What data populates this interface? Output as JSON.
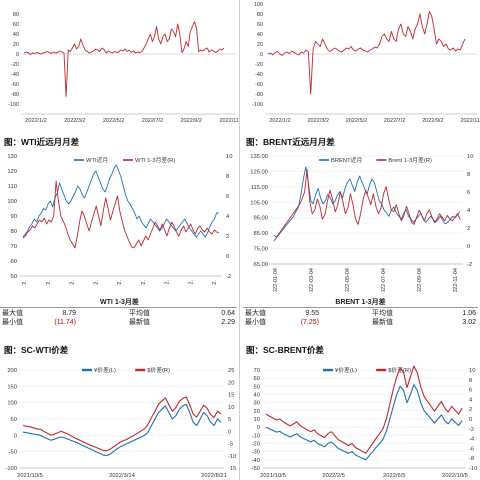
{
  "sections": {
    "wti_title": "图：WTI近远月月差",
    "brent_title": "图：BRENT近远月月差",
    "sc_wti_title": "图：SC-WTI价差",
    "sc_brent_title": "图：SC-BRENT价差"
  },
  "stats": {
    "wti": {
      "title": "WTI 1-3月差",
      "rows": [
        {
          "l1": "最大值",
          "v1": "8.79",
          "l2": "平均值",
          "v2": "0.64",
          "v1_color": "#222222"
        },
        {
          "l1": "最小值",
          "v1": "(11.74)",
          "l2": "最新值",
          "v2": "2.29",
          "v1_color": "#c00000"
        }
      ]
    },
    "brent": {
      "title": "BRENT 1-3月差",
      "rows": [
        {
          "l1": "最大值",
          "v1": "9.55",
          "l2": "平均值",
          "v2": "1.06",
          "v1_color": "#222222"
        },
        {
          "l1": "最小值",
          "v1": "(7.25)",
          "l2": "最新值",
          "v2": "3.02",
          "v1_color": "#c00000"
        }
      ]
    }
  },
  "colors": {
    "blue": "#1f6fb5",
    "red": "#c0272d"
  },
  "chart_data": [
    {
      "id": "top-left",
      "type": "line",
      "ylim": [
        -120,
        100
      ],
      "yticks": [
        -100,
        -80,
        -60,
        -40,
        -20,
        0,
        20,
        40,
        60,
        80
      ],
      "xticks": [
        "2022/1/2",
        "2022/3/2",
        "2022/5/2",
        "2022/7/2",
        "2022/9/2",
        "2022/11/"
      ],
      "series": [
        {
          "color": "red",
          "values": [
            2,
            4,
            3,
            -1,
            2,
            1,
            3,
            2,
            0,
            2,
            3,
            5,
            3,
            1,
            4,
            2,
            3,
            6,
            4,
            2,
            -85,
            8,
            5,
            12,
            20,
            10,
            15,
            30,
            18,
            8,
            5,
            2,
            4,
            6,
            10,
            8,
            5,
            12,
            9,
            2,
            6,
            4,
            2,
            5,
            3,
            4,
            8,
            6,
            10,
            5,
            8,
            3,
            6,
            2,
            4,
            3,
            5,
            12,
            20,
            30,
            40,
            25,
            35,
            55,
            30,
            20,
            35,
            40,
            25,
            30,
            50,
            45,
            35,
            60,
            40,
            3,
            10,
            25,
            15,
            45,
            55,
            65,
            50,
            5,
            8,
            6,
            10,
            12,
            4,
            8,
            6,
            3,
            5,
            10,
            8,
            12
          ]
        }
      ]
    },
    {
      "id": "top-right",
      "type": "line",
      "ylim": [
        -120,
        100
      ],
      "yticks": [
        -100,
        -80,
        -60,
        -40,
        -20,
        0,
        20,
        40,
        60,
        80,
        100
      ],
      "xticks": [
        "2022/1/2",
        "2022/3/2",
        "2022/5/2",
        "2022/7/2",
        "2022/9/2",
        "2022/11/"
      ],
      "series": [
        {
          "color": "red",
          "values": [
            0,
            2,
            -2,
            3,
            5,
            0,
            -3,
            2,
            4,
            1,
            6,
            3,
            0,
            -2,
            4,
            2,
            8,
            5,
            -80,
            10,
            25,
            20,
            15,
            30,
            20,
            10,
            5,
            8,
            12,
            10,
            6,
            4,
            8,
            12,
            10,
            15,
            8,
            6,
            10,
            12,
            8,
            6,
            4,
            8,
            10,
            14,
            12,
            20,
            35,
            40,
            30,
            25,
            45,
            30,
            25,
            50,
            60,
            40,
            35,
            55,
            45,
            30,
            50,
            60,
            80,
            55,
            40,
            60,
            85,
            75,
            50,
            20,
            30,
            25,
            15,
            20,
            10,
            8,
            12,
            6,
            10,
            8,
            20,
            30
          ]
        }
      ]
    },
    {
      "id": "wti-spread",
      "type": "line",
      "ylim_left": [
        50,
        130
      ],
      "yticks_left": [
        50,
        60,
        70,
        80,
        90,
        100,
        110,
        120,
        130
      ],
      "ylim_right": [
        -2,
        10
      ],
      "yticks_right": [
        -2,
        0,
        2,
        4,
        6,
        8,
        10
      ],
      "xticks": [
        "2.",
        "2.",
        "2.",
        "2.",
        "2.",
        "2.",
        "2.",
        "2.",
        "2."
      ],
      "legend": [
        "WTI近月",
        "WTI 1-3月差(R)"
      ],
      "series": [
        {
          "name": "WTI近月",
          "color": "blue",
          "axis": "left",
          "values": [
            76,
            78,
            80,
            83,
            85,
            88,
            86,
            90,
            92,
            95,
            94,
            98,
            100,
            96,
            102,
            105,
            112,
            108,
            104,
            100,
            98,
            100,
            103,
            106,
            110,
            108,
            104,
            102,
            106,
            110,
            114,
            118,
            120,
            116,
            112,
            108,
            106,
            110,
            115,
            118,
            122,
            124,
            120,
            116,
            110,
            104,
            100,
            98,
            95,
            92,
            88,
            90,
            86,
            84,
            82,
            85,
            88,
            86,
            84,
            82,
            80,
            82,
            85,
            88,
            86,
            84,
            82,
            80,
            82,
            84,
            86,
            88,
            85,
            82,
            80,
            78,
            76,
            78,
            80,
            78,
            76,
            79,
            83,
            86,
            88,
            92,
            92
          ]
        },
        {
          "name": "WTI 1-3月差(R)",
          "color": "red",
          "axis": "right",
          "values": [
            1.8,
            2.0,
            2.4,
            2.6,
            3.0,
            2.8,
            3.2,
            3.6,
            3.4,
            3.8,
            3.2,
            3.6,
            3.4,
            4.0,
            7.5,
            5.5,
            4.0,
            3.5,
            3.0,
            2.2,
            1.6,
            1.2,
            0.8,
            2.0,
            3.5,
            4.5,
            4.0,
            3.2,
            2.5,
            3.4,
            4.2,
            5.0,
            4.0,
            3.0,
            4.5,
            5.8,
            4.8,
            3.6,
            4.4,
            5.2,
            6.0,
            4.5,
            3.5,
            2.6,
            2.0,
            1.4,
            0.9,
            0.8,
            1.2,
            1.6,
            1.0,
            1.5,
            2.0,
            1.6,
            2.2,
            2.8,
            3.4,
            3.0,
            2.6,
            3.2,
            2.6,
            2.0,
            2.8,
            3.4,
            3.0,
            2.4,
            2.0,
            2.6,
            3.0,
            2.4,
            2.8,
            3.2,
            2.6,
            2.2,
            2.8,
            3.0,
            2.6,
            2.4,
            2.8,
            2.4,
            2.2,
            2.6,
            2.4,
            2.3
          ]
        }
      ]
    },
    {
      "id": "brent-spread",
      "type": "line",
      "ylim_left": [
        65,
        135
      ],
      "yticks_left": [
        65,
        75,
        85,
        95,
        105,
        115,
        125,
        135
      ],
      "yticklabels_left": [
        "65.00",
        "75.00",
        "85.00",
        "95.00",
        "105.00",
        "115.00",
        "125.00",
        "135.00"
      ],
      "ylim_right": [
        -2,
        10
      ],
      "yticks_right": [
        -2,
        0,
        2,
        4,
        6,
        8,
        10
      ],
      "xticks": [
        "2022-01-04",
        "2022-03-04",
        "2022-05-04",
        "2022-07-04",
        "2022-09-04",
        "2022-11-04"
      ],
      "legend": [
        "BRENT近月",
        "Brent 1-3月差(R)"
      ],
      "series": [
        {
          "name": "BRENT近月",
          "color": "blue",
          "axis": "left",
          "values": [
            80,
            82,
            84,
            86,
            88,
            90,
            92,
            94,
            96,
            99,
            102,
            110,
            120,
            128,
            118,
            106,
            104,
            110,
            114,
            108,
            104,
            106,
            110,
            108,
            104,
            106,
            110,
            112,
            108,
            114,
            118,
            120,
            116,
            112,
            118,
            122,
            118,
            114,
            110,
            116,
            120,
            118,
            112,
            106,
            104,
            100,
            98,
            96,
            100,
            102,
            98,
            96,
            94,
            98,
            100,
            96,
            94,
            92,
            94,
            96,
            98,
            94,
            92,
            94,
            96,
            94,
            92,
            94,
            96,
            93,
            91,
            92,
            94,
            96,
            95,
            97,
            99
          ]
        },
        {
          "name": "Brent 1-3月差(R)",
          "color": "red",
          "axis": "right",
          "values": [
            1.2,
            1.0,
            1.4,
            1.8,
            2.2,
            2.6,
            3.0,
            3.4,
            3.8,
            4.2,
            4.6,
            5.2,
            6.0,
            8.5,
            5.0,
            3.6,
            4.0,
            5.2,
            4.4,
            3.0,
            3.5,
            5.0,
            6.2,
            5.2,
            3.8,
            4.5,
            6.0,
            5.0,
            3.6,
            4.2,
            5.8,
            4.6,
            3.0,
            2.4,
            3.6,
            5.2,
            6.2,
            5.4,
            4.6,
            5.8,
            4.4,
            3.6,
            4.2,
            5.8,
            6.6,
            5.2,
            4.0,
            3.8,
            4.6,
            3.6,
            2.8,
            3.4,
            4.4,
            3.6,
            2.6,
            2.4,
            3.2,
            4.0,
            3.4,
            2.8,
            3.6,
            4.0,
            3.2,
            2.6,
            3.0,
            3.6,
            3.2,
            2.8,
            3.4,
            3.0,
            2.8,
            3.2,
            3.6,
            3.0
          ]
        }
      ]
    },
    {
      "id": "sc-wti",
      "type": "line",
      "ylim_left": [
        -100,
        200
      ],
      "yticks_left": [
        -100,
        -50,
        0,
        50,
        100,
        150,
        200
      ],
      "ylim_right": [
        -15,
        25
      ],
      "yticks_right": [
        -15,
        -10,
        -5,
        0,
        5,
        10,
        15,
        20,
        25
      ],
      "xticks": [
        "2021/10/5",
        "2022/3/14",
        "2022/8/21"
      ],
      "legend": [
        "¥价差(L)",
        "$价差(R)"
      ],
      "series": [
        {
          "name": "¥价差(L)",
          "color": "blue",
          "axis": "left",
          "values": [
            10,
            8,
            6,
            4,
            2,
            0,
            -5,
            -10,
            -15,
            -12,
            -8,
            -5,
            -8,
            -12,
            -16,
            -20,
            -25,
            -30,
            -35,
            -40,
            -45,
            -50,
            -55,
            -60,
            -62,
            -58,
            -50,
            -42,
            -35,
            -30,
            -25,
            -20,
            -15,
            -10,
            -5,
            0,
            10,
            30,
            50,
            70,
            80,
            90,
            70,
            50,
            60,
            80,
            90,
            95,
            70,
            40,
            30,
            50,
            70,
            60,
            40,
            30,
            50,
            40
          ]
        },
        {
          "name": "$价差(R)",
          "color": "red",
          "axis": "right",
          "values": [
            2.4,
            2.0,
            1.8,
            1.4,
            1.0,
            0.8,
            0.0,
            -0.8,
            -1.6,
            -1.2,
            -0.6,
            0.0,
            -0.6,
            -1.2,
            -2.0,
            -2.8,
            -3.4,
            -4.2,
            -4.8,
            -5.4,
            -6.0,
            -6.6,
            -7.2,
            -7.8,
            -8.0,
            -7.4,
            -6.4,
            -5.4,
            -4.4,
            -3.8,
            -3.2,
            -2.4,
            -1.6,
            -0.8,
            0.2,
            1.0,
            2.8,
            5.6,
            8.2,
            11.0,
            12.4,
            13.6,
            10.8,
            8.2,
            9.6,
            12.2,
            13.4,
            14.0,
            10.8,
            7.0,
            5.8,
            8.2,
            10.6,
            9.4,
            6.8,
            5.6,
            8.2,
            7.0
          ]
        }
      ]
    },
    {
      "id": "sc-brent",
      "type": "line",
      "ylim_left": [
        -50,
        70
      ],
      "yticks_left": [
        -50,
        -40,
        -30,
        -20,
        -10,
        0,
        10,
        20,
        30,
        40,
        50,
        60,
        70
      ],
      "ylim_right": [
        -10,
        10
      ],
      "yticks_right": [
        -10,
        -8,
        -6,
        -4,
        -2,
        0,
        2,
        4,
        6,
        8,
        10
      ],
      "xticks": [
        "2021/10/5",
        "2022/2/5",
        "2022/6/5",
        "2022/10/5"
      ],
      "legend": [
        "¥价差(L)",
        "$价差(R)"
      ],
      "series": [
        {
          "name": "¥价差(L)",
          "color": "blue",
          "axis": "left",
          "values": [
            0,
            -2,
            -4,
            -6,
            -5,
            -8,
            -10,
            -12,
            -10,
            -8,
            -12,
            -14,
            -16,
            -18,
            -16,
            -20,
            -22,
            -24,
            -20,
            -18,
            -22,
            -26,
            -28,
            -30,
            -32,
            -30,
            -34,
            -36,
            -38,
            -40,
            -35,
            -30,
            -25,
            -20,
            -15,
            -5,
            10,
            25,
            40,
            50,
            45,
            30,
            40,
            52,
            45,
            30,
            20,
            15,
            10,
            5,
            10,
            15,
            8,
            4,
            10,
            6,
            2,
            8
          ]
        },
        {
          "name": "$价差(R)",
          "color": "red",
          "axis": "right",
          "values": [
            1.0,
            0.6,
            0.2,
            -0.2,
            0.0,
            -0.6,
            -1.0,
            -1.4,
            -1.0,
            -0.6,
            -1.4,
            -1.8,
            -2.2,
            -2.6,
            -2.2,
            -3.0,
            -3.4,
            -3.8,
            -3.0,
            -2.6,
            -3.4,
            -4.2,
            -4.6,
            -5.0,
            -5.4,
            -5.0,
            -5.8,
            -6.2,
            -6.6,
            -7.0,
            -6.0,
            -5.0,
            -4.0,
            -3.0,
            -2.0,
            0.0,
            3.0,
            6.0,
            8.6,
            10.4,
            9.6,
            6.4,
            8.6,
            10.8,
            9.4,
            6.6,
            4.6,
            3.6,
            2.6,
            1.6,
            2.6,
            3.6,
            2.2,
            1.4,
            2.6,
            1.8,
            1.0,
            2.2
          ]
        }
      ]
    }
  ]
}
